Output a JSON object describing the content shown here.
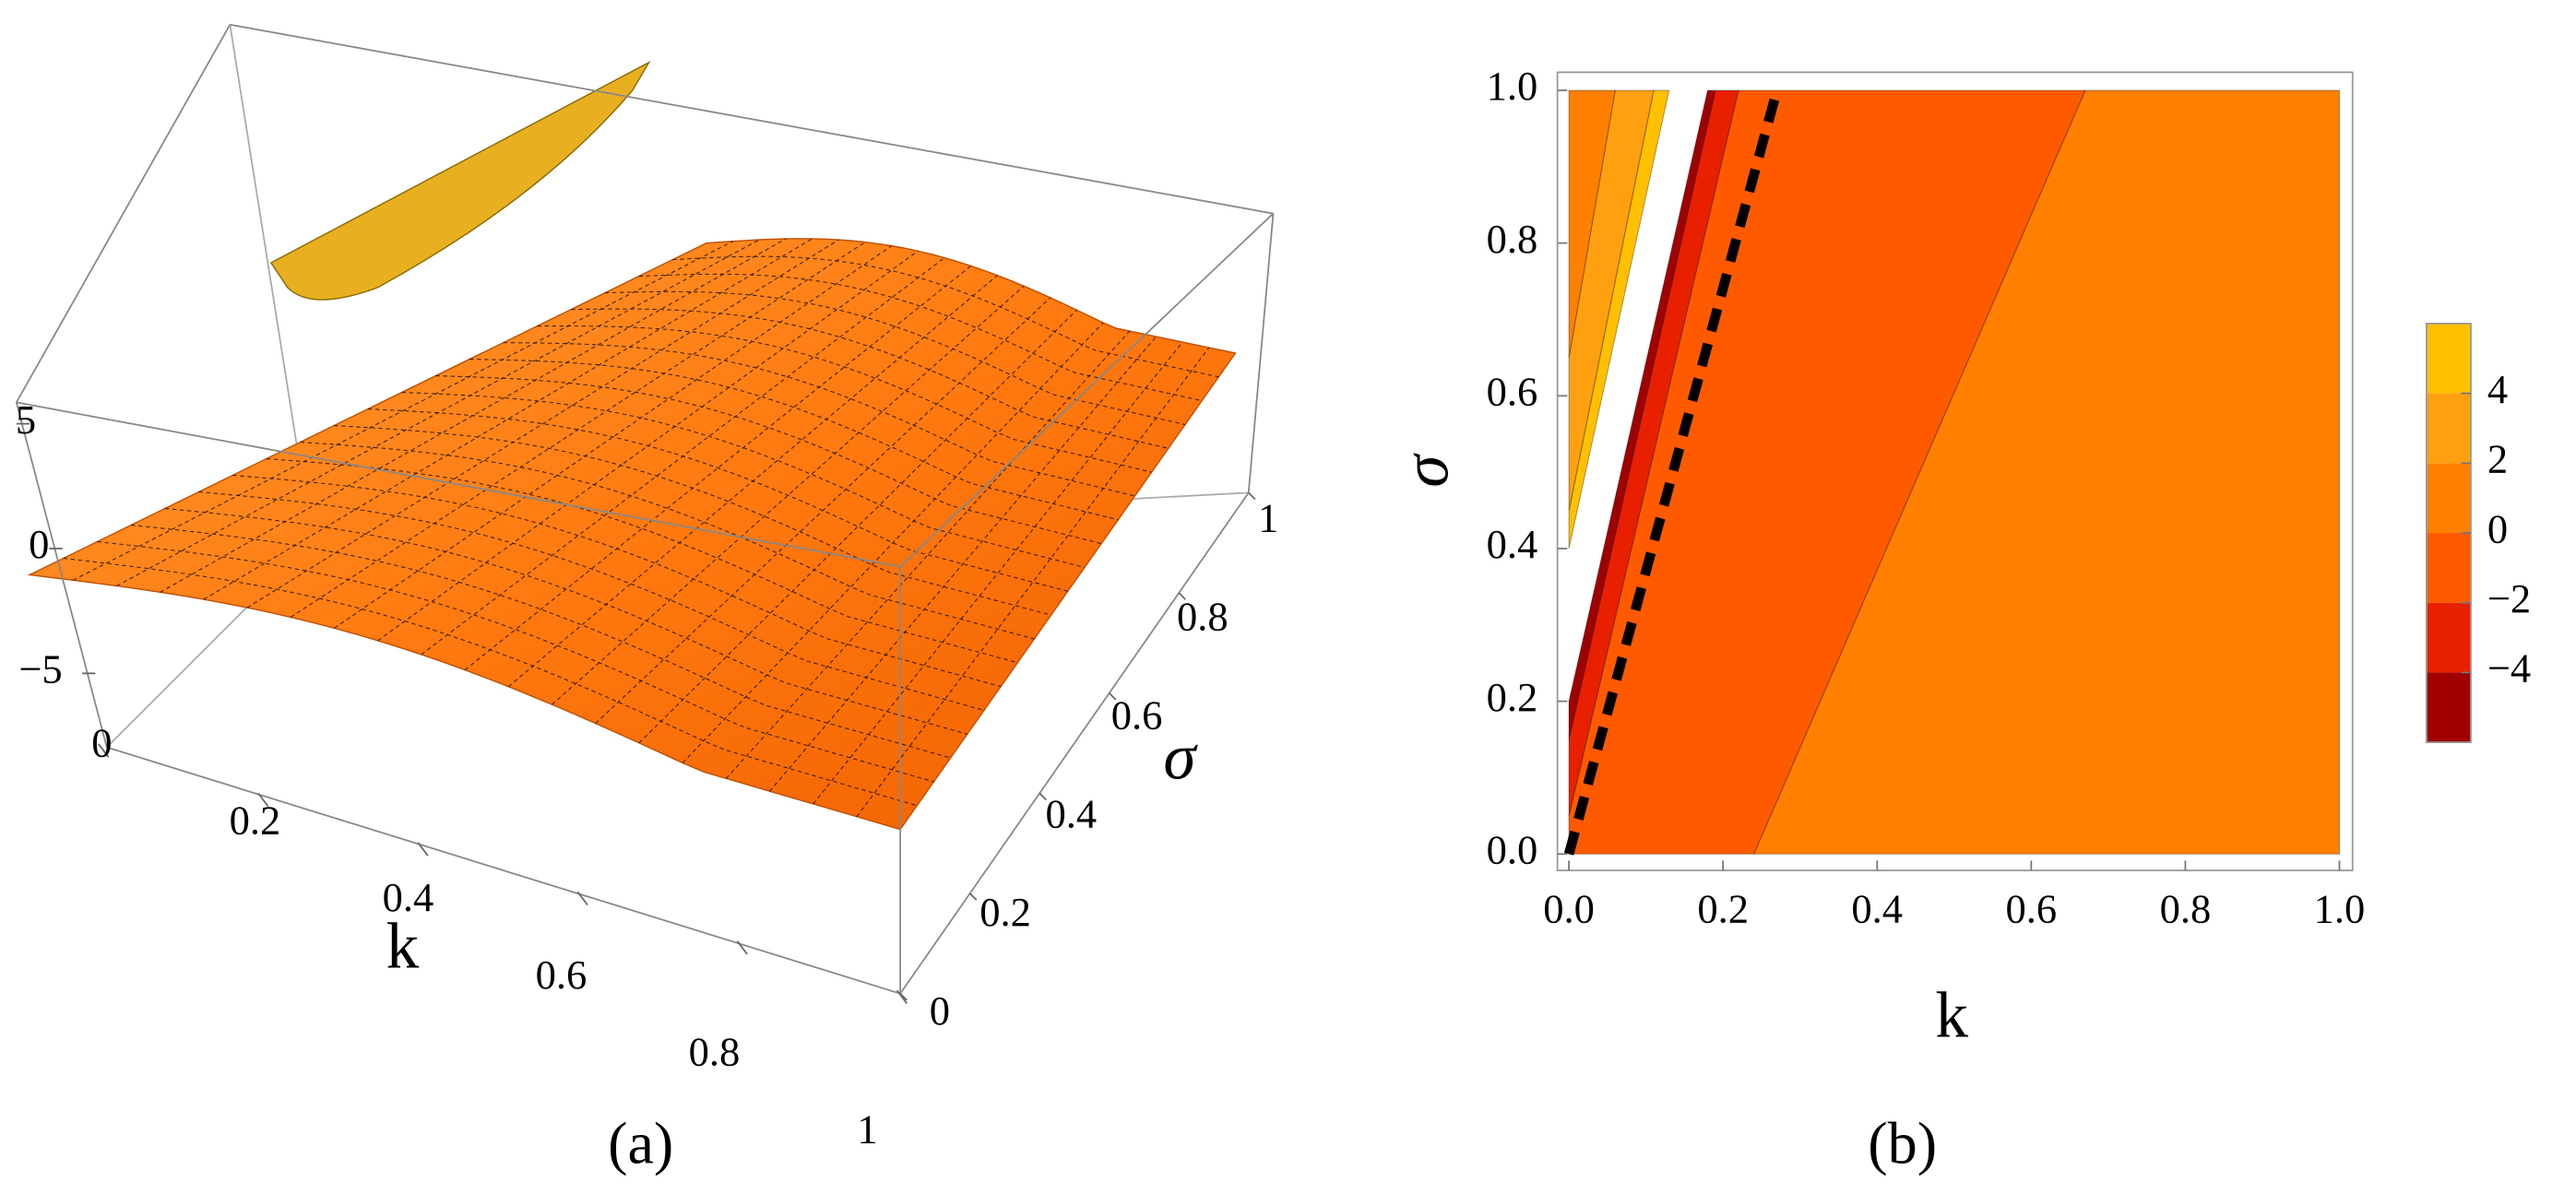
{
  "chart_data": [
    {
      "type": "surface3d",
      "panel_label": "(a)",
      "xlabel": "k",
      "ylabel": "σ",
      "xlim": [
        0,
        1
      ],
      "ylim": [
        0,
        1
      ],
      "zlim": [
        -5,
        5
      ],
      "xticks": [
        0,
        0.2,
        0.4,
        0.6,
        0.8,
        1
      ],
      "yticks": [
        0,
        0.2,
        0.4,
        0.6,
        0.8,
        1
      ],
      "zticks": [
        {
          "value": -5,
          "label": "−5"
        },
        0,
        5
      ],
      "color": "#ff8000"
    },
    {
      "type": "contour",
      "panel_label": "(b)",
      "xlabel": "k",
      "ylabel": "σ",
      "xlim": [
        0,
        1
      ],
      "ylim": [
        0,
        1
      ],
      "xticks": [
        {
          "value": 0,
          "label": "0.0"
        },
        0.2,
        0.4,
        0.6,
        0.8,
        {
          "value": 1,
          "label": "1.0"
        }
      ],
      "yticks": [
        {
          "value": 0,
          "label": "0.0"
        },
        0.2,
        0.4,
        0.6,
        0.8,
        {
          "value": 1,
          "label": "1.0"
        }
      ],
      "regions": [
        {
          "color": "#ff8000",
          "x": [
            0.24,
            1,
            1,
            0.67
          ],
          "y": [
            0,
            0,
            1,
            1
          ]
        },
        {
          "color": "#ff5a00",
          "x": [
            0,
            0.24,
            0.67,
            0.22,
            0
          ],
          "y": [
            0,
            0,
            1,
            1,
            0.05
          ]
        },
        {
          "color": "#e82000",
          "x": [
            0,
            0.22,
            0.19,
            0
          ],
          "y": [
            0.05,
            1,
            1,
            0.15
          ]
        },
        {
          "color": "#a00000",
          "x": [
            0,
            0.19,
            0.18,
            0
          ],
          "y": [
            0.15,
            1,
            1,
            0.2
          ]
        },
        {
          "color": "#ffc000",
          "x": [
            0,
            0.13,
            0.11,
            0
          ],
          "y": [
            0.4,
            1,
            1,
            0.45
          ]
        },
        {
          "color": "#ffa010",
          "x": [
            0,
            0.11,
            0.06,
            0
          ],
          "y": [
            0.45,
            1,
            1,
            0.65
          ]
        },
        {
          "color": "#ff8000",
          "x": [
            0,
            0.06,
            0
          ],
          "y": [
            0.65,
            1,
            1
          ]
        }
      ],
      "dashed_line": {
        "color": "#000000",
        "x": [
          0,
          0.27
        ],
        "y": [
          0,
          1
        ]
      },
      "colorbar": {
        "levels": [
          -6,
          -4,
          -2,
          0,
          2,
          4,
          6
        ],
        "colors": [
          "#a00000",
          "#e82000",
          "#ff5a00",
          "#ff8000",
          "#ffa010",
          "#ffc000"
        ],
        "ticks": [
          {
            "value": -4,
            "label": "−4"
          },
          {
            "value": -2,
            "label": "−2"
          },
          0,
          2,
          4
        ]
      }
    }
  ]
}
